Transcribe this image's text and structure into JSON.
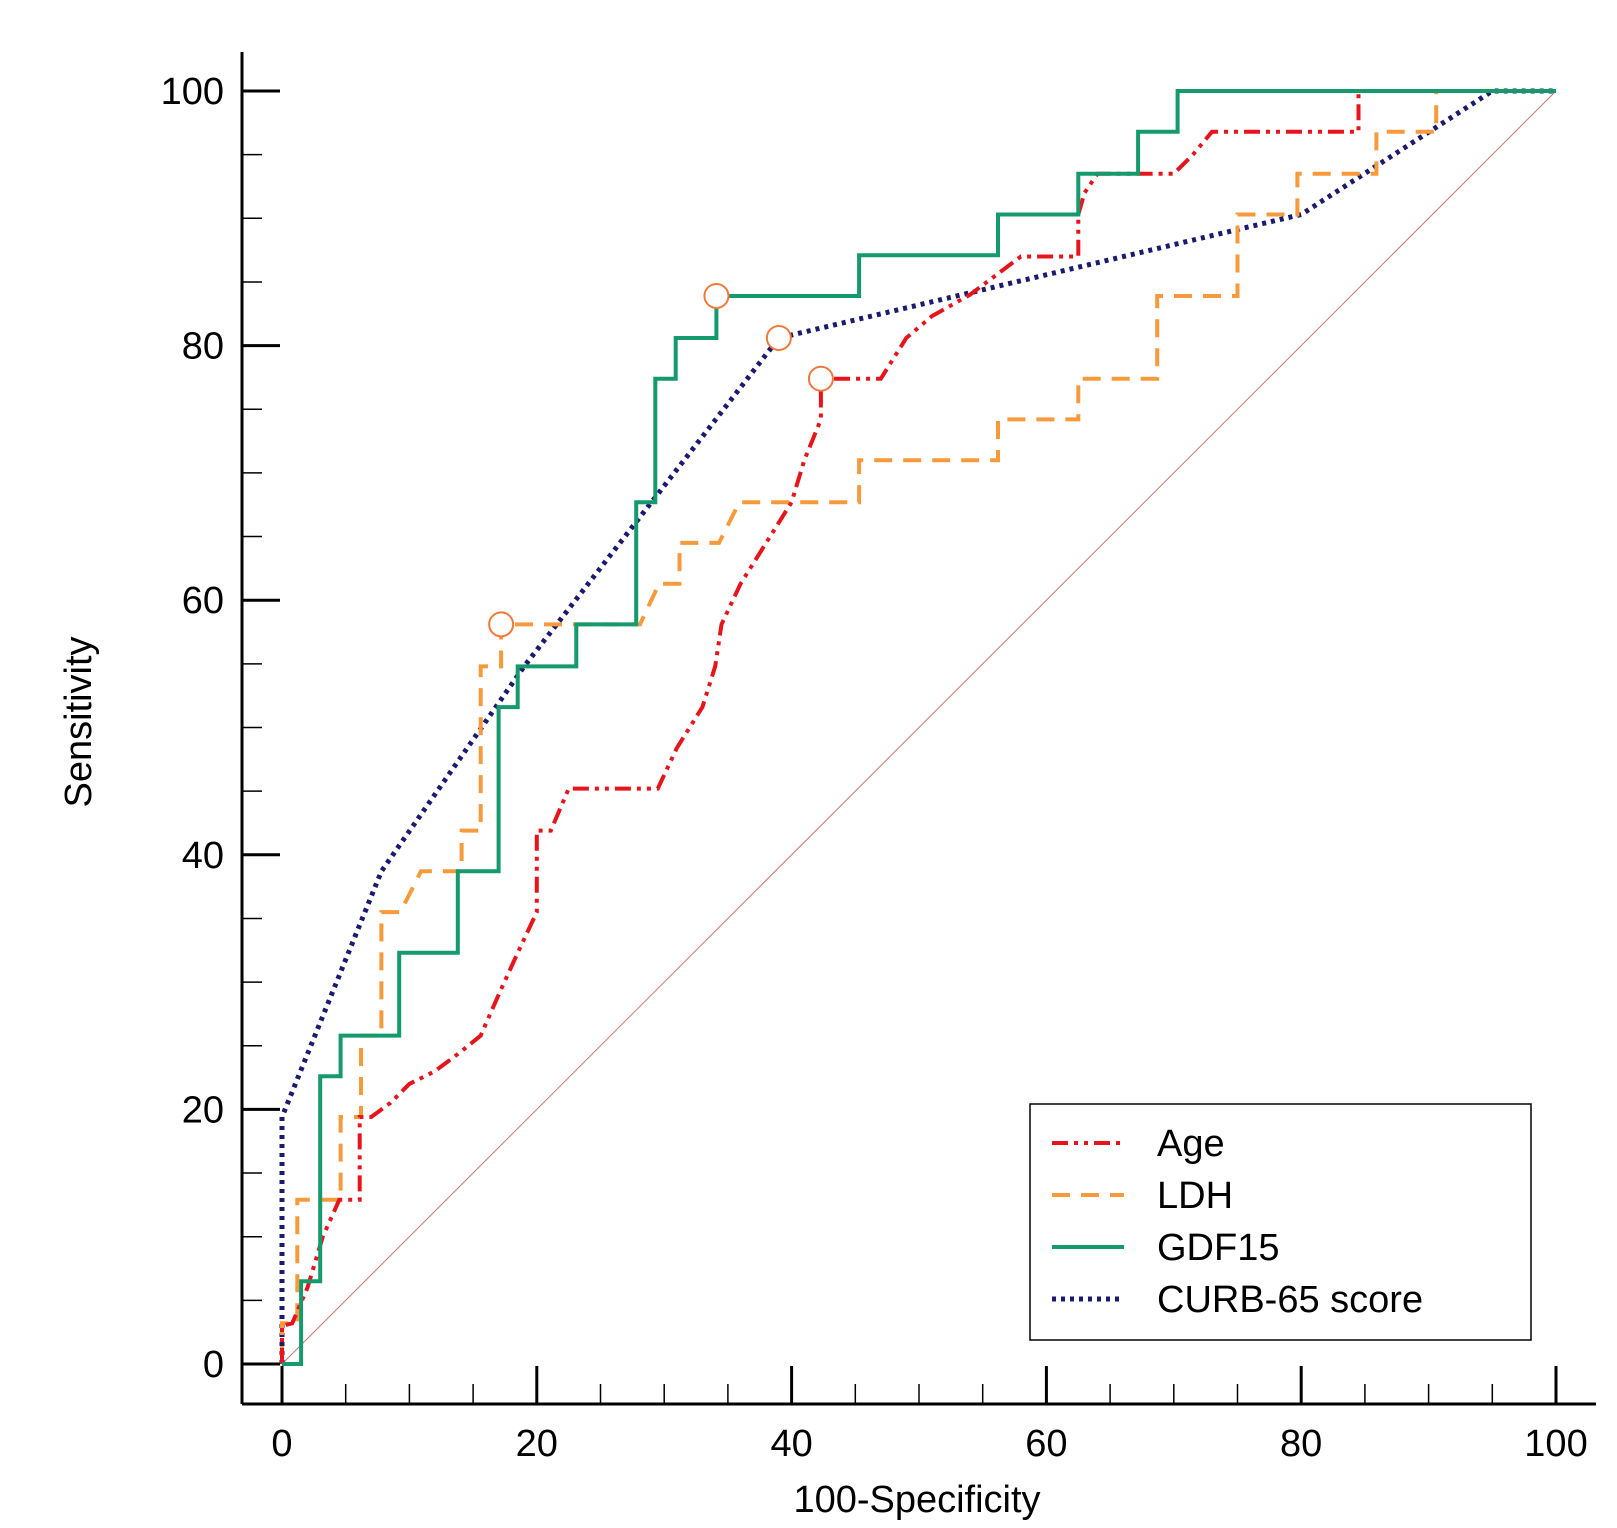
{
  "chart_data": {
    "type": "line",
    "title": "",
    "xlabel": "100-Specificity",
    "ylabel": "Sensitivity",
    "xlim": [
      0,
      100
    ],
    "ylim": [
      0,
      100
    ],
    "xticks": [
      0,
      20,
      40,
      60,
      80,
      100
    ],
    "yticks": [
      0,
      20,
      40,
      60,
      80,
      100
    ],
    "legend_position": "bottom-right",
    "reference_line": {
      "x": [
        0,
        100
      ],
      "y": [
        0,
        100
      ],
      "color": "#c87868"
    },
    "series": [
      {
        "name": "Age",
        "color": "#e8141c",
        "dash": "dashdotdot",
        "x": [
          0,
          0,
          0.8,
          2,
          3.2,
          4.5,
          6.1,
          6.1,
          7,
          8.5,
          10,
          12,
          14,
          15.6,
          17,
          18.5,
          20,
          20,
          21.1,
          22.5,
          25,
          29.5,
          31,
          33,
          34,
          34.5,
          36,
          38,
          40,
          41,
          42.3,
          42.3,
          44,
          45,
          47,
          49,
          51,
          54,
          56,
          58,
          60,
          61,
          62.5,
          62.5,
          63,
          64,
          66,
          68,
          70,
          71.5,
          73,
          74,
          76,
          80,
          84.5,
          84.5,
          86,
          88,
          90,
          92,
          94,
          96,
          98,
          100
        ],
        "y": [
          0,
          3,
          3.2,
          6,
          10,
          12.9,
          12.9,
          19.4,
          19.4,
          20.5,
          22,
          23,
          24.5,
          25.8,
          29,
          32.3,
          35.5,
          41.9,
          41.9,
          45.2,
          45.2,
          45.2,
          48.4,
          51.6,
          54.8,
          58.1,
          61.3,
          64.5,
          67.7,
          71,
          74.2,
          77.4,
          77.4,
          77.4,
          77.4,
          80.6,
          82.3,
          84,
          85.5,
          87,
          87,
          87,
          87,
          90.3,
          92,
          93.5,
          93.5,
          93.5,
          93.5,
          95,
          96.8,
          96.8,
          96.8,
          96.8,
          96.8,
          100,
          100,
          100,
          100,
          100,
          100,
          100,
          100,
          100
        ]
      },
      {
        "name": "LDH",
        "color": "#f79a3c",
        "dash": "dashed",
        "x": [
          0,
          0,
          1.2,
          1.2,
          4.6,
          4.6,
          6.2,
          6.2,
          7.8,
          7.8,
          9.3,
          10.9,
          12.5,
          14.1,
          14.1,
          15.6,
          15.6,
          17.2,
          17.2,
          18.7,
          23.4,
          28.1,
          29.6,
          31.2,
          31.2,
          34.3,
          35.9,
          37.5,
          45.3,
          45.3,
          56.2,
          56.2,
          62.5,
          62.5,
          68.7,
          68.7,
          75,
          75,
          79.7,
          79.7,
          85.9,
          85.9,
          90.6,
          90.6,
          100
        ],
        "y": [
          0,
          3.2,
          3.2,
          12.9,
          12.9,
          19.4,
          19.4,
          25.8,
          25.8,
          35.5,
          35.5,
          38.7,
          38.7,
          38.7,
          41.9,
          41.9,
          54.8,
          54.8,
          58.1,
          58.1,
          58.1,
          58.1,
          61.3,
          61.3,
          64.5,
          64.5,
          67.7,
          67.7,
          67.7,
          71,
          71,
          74.2,
          74.2,
          77.4,
          77.4,
          83.9,
          83.9,
          90.3,
          90.3,
          93.5,
          93.5,
          96.8,
          96.8,
          100,
          100
        ]
      },
      {
        "name": "GDF15",
        "color": "#149a6c",
        "dash": "solid",
        "x": [
          0,
          1.5,
          1.5,
          3,
          3,
          4.6,
          4.6,
          9.2,
          9.2,
          13.8,
          13.8,
          17,
          17,
          18.5,
          18.5,
          23.1,
          23.1,
          27.8,
          27.8,
          29.3,
          29.3,
          30.9,
          30.9,
          34.1,
          34.1,
          45.3,
          45.3,
          56.2,
          56.2,
          62.5,
          62.5,
          67.2,
          67.2,
          70.3,
          70.3,
          100
        ],
        "y": [
          0,
          0,
          6.5,
          6.5,
          22.6,
          22.6,
          25.8,
          25.8,
          32.3,
          32.3,
          38.7,
          38.7,
          51.6,
          51.6,
          54.8,
          54.8,
          58.1,
          58.1,
          67.7,
          67.7,
          77.4,
          77.4,
          80.6,
          80.6,
          83.9,
          83.9,
          87.1,
          87.1,
          90.3,
          90.3,
          93.5,
          93.5,
          96.8,
          96.8,
          100,
          100
        ]
      },
      {
        "name": "CURB-65 score",
        "color": "#1a1a6e",
        "dash": "dotted",
        "x": [
          0,
          0,
          7.8,
          19,
          39,
          80,
          95,
          100
        ],
        "y": [
          0,
          19.4,
          38.7,
          54.8,
          80.6,
          90.3,
          100,
          100
        ]
      }
    ],
    "cutoff_markers": [
      {
        "series": "GDF15",
        "x": 34.1,
        "y": 83.9
      },
      {
        "series": "CURB-65 score",
        "x": 39,
        "y": 80.6
      },
      {
        "series": "Age",
        "x": 42.3,
        "y": 77.4
      },
      {
        "series": "LDH",
        "x": 17.2,
        "y": 58.1
      }
    ],
    "marker_color": "#f07a3c"
  }
}
